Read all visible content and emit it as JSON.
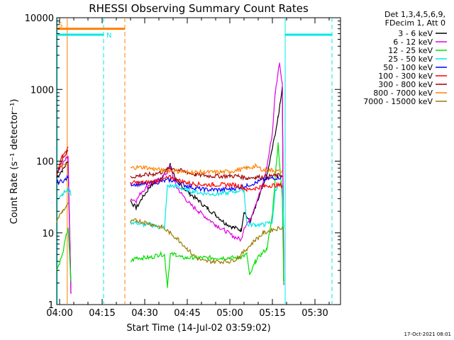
{
  "chart_data": {
    "type": "line",
    "title": "RHESSI Observing Summary Count Rates",
    "xlabel": "Start Time (14-Jul-02 03:59:02)",
    "ylabel": "Count Rate (s⁻¹ detector⁻¹)",
    "ylim": [
      1,
      10000
    ],
    "yscale": "log",
    "xlim_minutes": [
      0,
      100
    ],
    "x_ticks": [
      {
        "t": 1,
        "label": "04:00"
      },
      {
        "t": 16,
        "label": "04:15"
      },
      {
        "t": 31,
        "label": "04:30"
      },
      {
        "t": 46,
        "label": "04:45"
      },
      {
        "t": 61,
        "label": "05:00"
      },
      {
        "t": 76,
        "label": "05:15"
      },
      {
        "t": 91,
        "label": "05:30"
      }
    ],
    "y_ticks": [
      {
        "v": 1,
        "label": "1"
      },
      {
        "v": 10,
        "label": "10"
      },
      {
        "v": 100,
        "label": "100"
      },
      {
        "v": 1000,
        "label": "1000"
      },
      {
        "v": 10000,
        "label": "10000"
      }
    ],
    "legend_header": [
      "Det 1,3,4,5,6,9,",
      "FDecim 1, Att 0"
    ],
    "series": [
      {
        "name": "3 - 6 keV",
        "color": "#000000",
        "points": [
          [
            0,
            60
          ],
          [
            2,
            75
          ],
          [
            4,
            100
          ],
          [
            5,
            1.5
          ],
          [
            26,
            28
          ],
          [
            28,
            22
          ],
          [
            30,
            30
          ],
          [
            33,
            45
          ],
          [
            36,
            55
          ],
          [
            39,
            75
          ],
          [
            40,
            90
          ],
          [
            42,
            55
          ],
          [
            44,
            45
          ],
          [
            47,
            35
          ],
          [
            50,
            28
          ],
          [
            53,
            22
          ],
          [
            56,
            18
          ],
          [
            59,
            14
          ],
          [
            62,
            12
          ],
          [
            65,
            11
          ],
          [
            66,
            20
          ],
          [
            68,
            14
          ],
          [
            70,
            22
          ],
          [
            72,
            38
          ],
          [
            74,
            60
          ],
          [
            76,
            150
          ],
          [
            78,
            400
          ],
          [
            79.5,
            1100
          ],
          [
            80,
            2
          ]
        ]
      },
      {
        "name": "6 - 12 keV",
        "color": "#e000e0",
        "points": [
          [
            0,
            70
          ],
          [
            2,
            90
          ],
          [
            4,
            120
          ],
          [
            5,
            1.5
          ],
          [
            26,
            30
          ],
          [
            28,
            28
          ],
          [
            30,
            38
          ],
          [
            33,
            48
          ],
          [
            36,
            55
          ],
          [
            39,
            70
          ],
          [
            40,
            85
          ],
          [
            42,
            45
          ],
          [
            44,
            35
          ],
          [
            47,
            25
          ],
          [
            50,
            20
          ],
          [
            53,
            16
          ],
          [
            56,
            13
          ],
          [
            59,
            11
          ],
          [
            62,
            9
          ],
          [
            65,
            8
          ],
          [
            66,
            12
          ],
          [
            68,
            15
          ],
          [
            70,
            25
          ],
          [
            72,
            40
          ],
          [
            74,
            80
          ],
          [
            76,
            250
          ],
          [
            77,
            900
          ],
          [
            78.5,
            2400
          ],
          [
            79.5,
            1200
          ],
          [
            80,
            2
          ]
        ]
      },
      {
        "name": "12 - 25 keV",
        "color": "#00e000",
        "points": [
          [
            0,
            3
          ],
          [
            2,
            5
          ],
          [
            4,
            12
          ],
          [
            5,
            2
          ],
          [
            26,
            4
          ],
          [
            28,
            4.5
          ],
          [
            30,
            4.5
          ],
          [
            33,
            4.5
          ],
          [
            36,
            5
          ],
          [
            38,
            5
          ],
          [
            39,
            1.8
          ],
          [
            40,
            5
          ],
          [
            42,
            5
          ],
          [
            44,
            4.5
          ],
          [
            46,
            4.5
          ],
          [
            48,
            4.5
          ],
          [
            50,
            4.5
          ],
          [
            52,
            4.5
          ],
          [
            55,
            4.5
          ],
          [
            58,
            4.5
          ],
          [
            61,
            4.5
          ],
          [
            64,
            4.5
          ],
          [
            67,
            5
          ],
          [
            68,
            2.5
          ],
          [
            70,
            4
          ],
          [
            72,
            5
          ],
          [
            74,
            6
          ],
          [
            75,
            10
          ],
          [
            76,
            18
          ],
          [
            77,
            60
          ],
          [
            78,
            180
          ],
          [
            79.5,
            30
          ],
          [
            80,
            2
          ]
        ]
      },
      {
        "name": "25 - 50 keV",
        "color": "#00e8e8",
        "points": [
          [
            0,
            30
          ],
          [
            2,
            35
          ],
          [
            4,
            40
          ],
          [
            5,
            35
          ],
          [
            26,
            14
          ],
          [
            28,
            14
          ],
          [
            30,
            13
          ],
          [
            33,
            13
          ],
          [
            36,
            12
          ],
          [
            38,
            12
          ],
          [
            39,
            45
          ],
          [
            42,
            45
          ],
          [
            45,
            40
          ],
          [
            48,
            38
          ],
          [
            51,
            36
          ],
          [
            54,
            35
          ],
          [
            57,
            35
          ],
          [
            60,
            36
          ],
          [
            63,
            38
          ],
          [
            66,
            40
          ],
          [
            67,
            13
          ],
          [
            70,
            13
          ],
          [
            73,
            13
          ],
          [
            75,
            14
          ],
          [
            76,
            14
          ],
          [
            77,
            40
          ],
          [
            78,
            45
          ],
          [
            79.5,
            45
          ],
          [
            80,
            12
          ]
        ]
      },
      {
        "name": "50 - 100 keV",
        "color": "#0000ff",
        "points": [
          [
            0,
            50
          ],
          [
            3,
            55
          ],
          [
            4,
            60
          ],
          [
            26,
            48
          ],
          [
            28,
            48
          ],
          [
            31,
            48
          ],
          [
            34,
            50
          ],
          [
            37,
            52
          ],
          [
            40,
            55
          ],
          [
            43,
            50
          ],
          [
            46,
            45
          ],
          [
            49,
            42
          ],
          [
            52,
            40
          ],
          [
            55,
            40
          ],
          [
            58,
            40
          ],
          [
            61,
            41
          ],
          [
            64,
            43
          ],
          [
            67,
            46
          ],
          [
            70,
            50
          ],
          [
            73,
            55
          ],
          [
            76,
            58
          ],
          [
            79.5,
            60
          ]
        ]
      },
      {
        "name": "100 - 300 keV",
        "color": "#ff0000",
        "points": [
          [
            0,
            65
          ],
          [
            2,
            120
          ],
          [
            4,
            150
          ],
          [
            26,
            50
          ],
          [
            28,
            50
          ],
          [
            31,
            50
          ],
          [
            34,
            52
          ],
          [
            37,
            55
          ],
          [
            40,
            60
          ],
          [
            43,
            54
          ],
          [
            46,
            50
          ],
          [
            49,
            48
          ],
          [
            52,
            47
          ],
          [
            55,
            47
          ],
          [
            58,
            47
          ],
          [
            61,
            47
          ],
          [
            64,
            46
          ],
          [
            67,
            40
          ],
          [
            70,
            42
          ],
          [
            73,
            45
          ],
          [
            76,
            46
          ],
          [
            79.5,
            46
          ]
        ]
      },
      {
        "name": "300 - 800 keV",
        "color": "#a00000",
        "points": [
          [
            0,
            65
          ],
          [
            2,
            110
          ],
          [
            4,
            140
          ],
          [
            26,
            60
          ],
          [
            28,
            62
          ],
          [
            31,
            64
          ],
          [
            34,
            66
          ],
          [
            37,
            70
          ],
          [
            40,
            80
          ],
          [
            43,
            75
          ],
          [
            46,
            70
          ],
          [
            49,
            65
          ],
          [
            52,
            63
          ],
          [
            55,
            62
          ],
          [
            58,
            62
          ],
          [
            61,
            62
          ],
          [
            64,
            62
          ],
          [
            67,
            58
          ],
          [
            70,
            60
          ],
          [
            73,
            60
          ],
          [
            76,
            62
          ],
          [
            79.5,
            64
          ]
        ]
      },
      {
        "name": "800 - 7000 keV",
        "color": "#ff8000",
        "points": [
          [
            0,
            80
          ],
          [
            2,
            85
          ],
          [
            4,
            90
          ],
          [
            26,
            80
          ],
          [
            28,
            82
          ],
          [
            31,
            82
          ],
          [
            34,
            78
          ],
          [
            37,
            75
          ],
          [
            40,
            75
          ],
          [
            43,
            72
          ],
          [
            46,
            70
          ],
          [
            49,
            70
          ],
          [
            52,
            70
          ],
          [
            55,
            70
          ],
          [
            58,
            70
          ],
          [
            61,
            72
          ],
          [
            64,
            75
          ],
          [
            67,
            80
          ],
          [
            70,
            85
          ],
          [
            73,
            75
          ],
          [
            76,
            75
          ],
          [
            79.5,
            70
          ]
        ]
      },
      {
        "name": "7000 - 15000 keV",
        "color": "#9a7a00",
        "points": [
          [
            0,
            15
          ],
          [
            2,
            20
          ],
          [
            4,
            25
          ],
          [
            26,
            14
          ],
          [
            28,
            15
          ],
          [
            31,
            14
          ],
          [
            34,
            13
          ],
          [
            37,
            12
          ],
          [
            40,
            10
          ],
          [
            43,
            8
          ],
          [
            46,
            6
          ],
          [
            49,
            4.5
          ],
          [
            52,
            4
          ],
          [
            55,
            4
          ],
          [
            58,
            4
          ],
          [
            61,
            4
          ],
          [
            64,
            4.5
          ],
          [
            67,
            6
          ],
          [
            70,
            8
          ],
          [
            73,
            10
          ],
          [
            76,
            11
          ],
          [
            79.5,
            12
          ]
        ]
      }
    ],
    "annotations": {
      "flag_S": "S",
      "flag_N": "N",
      "orange_bar": {
        "t0": 0,
        "t1": 24,
        "v": 7000
      },
      "cyan_bar_left": {
        "t0": 0,
        "t1": 16.5,
        "v": 5800
      },
      "cyan_bar_right": {
        "t0": 80.5,
        "t1": 97,
        "v": 5800
      },
      "vlines": [
        {
          "t": 0.2,
          "color": "#00e8e8",
          "style": "solid"
        },
        {
          "t": 3.7,
          "color": "#ff8000",
          "style": "solid"
        },
        {
          "t": 16.5,
          "color": "#00e8e8",
          "style": "dashed"
        },
        {
          "t": 24.0,
          "color": "#ff8000",
          "style": "dashed"
        },
        {
          "t": 80.5,
          "color": "#00e8e8",
          "style": "solid"
        },
        {
          "t": 97.0,
          "color": "#00e8e8",
          "style": "dashed"
        }
      ]
    },
    "timestamp": "17-Oct-2021 08:01"
  }
}
